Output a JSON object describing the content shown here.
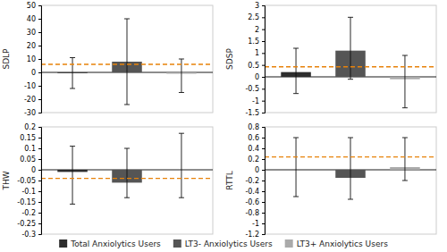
{
  "chart_data": [
    {
      "type": "bar",
      "y_label": "SDLP",
      "legend": "bottom",
      "categories": [
        null
      ],
      "ylim": [
        -30,
        50
      ],
      "yticks": [
        -30,
        -20,
        -10,
        0,
        10,
        20,
        30,
        40,
        50
      ],
      "reference_line": {
        "y": 6.0,
        "color": "#e8820a",
        "line_style": "dashed"
      },
      "series": [
        {
          "name": "Total Anxiolytics Users",
          "color": "#2d2d2d",
          "values": [
            -0.5
          ],
          "ci_low": [
            -12
          ],
          "ci_high": [
            11
          ]
        },
        {
          "name": "LT3- Anxiolytics Users",
          "color": "#555555",
          "values": [
            8.0
          ],
          "ci_low": [
            -24
          ],
          "ci_high": [
            40
          ]
        },
        {
          "name": "LT3+ Anxiolytics Users",
          "color": "#aaaaaa",
          "values": [
            -1.0
          ],
          "ci_low": [
            -15
          ],
          "ci_high": [
            10
          ]
        }
      ]
    },
    {
      "type": "bar",
      "y_label": "SDSP",
      "categories": [
        null
      ],
      "ylim": [
        -1.5,
        3.0
      ],
      "yticks": [
        -1.5,
        -1.0,
        -0.5,
        0,
        0.5,
        1.0,
        1.5,
        2.0,
        2.5,
        3.0
      ],
      "reference_line": {
        "y": 0.42,
        "color": "#e8820a",
        "line_style": "dashed"
      },
      "series": [
        {
          "name": "Total Anxiolytics Users",
          "color": "#2d2d2d",
          "values": [
            0.2
          ],
          "ci_low": [
            -0.7
          ],
          "ci_high": [
            1.2
          ]
        },
        {
          "name": "LT3- Anxiolytics Users",
          "color": "#555555",
          "values": [
            1.1
          ],
          "ci_low": [
            -0.1
          ],
          "ci_high": [
            2.5
          ]
        },
        {
          "name": "LT3+ Anxiolytics Users",
          "color": "#aaaaaa",
          "values": [
            -0.1
          ],
          "ci_low": [
            -1.3
          ],
          "ci_high": [
            0.9
          ]
        }
      ]
    },
    {
      "type": "bar",
      "y_label": "THW",
      "categories": [
        null
      ],
      "ylim": [
        -0.3,
        0.2
      ],
      "yticks": [
        -0.3,
        -0.25,
        -0.2,
        -0.15,
        -0.1,
        -0.05,
        0,
        0.05,
        0.1,
        0.15,
        0.2
      ],
      "reference_line": {
        "y": -0.04,
        "color": "#e8820a",
        "line_style": "dashed"
      },
      "series": [
        {
          "name": "Total Anxiolytics Users",
          "color": "#2d2d2d",
          "values": [
            -0.01
          ],
          "ci_low": [
            -0.16
          ],
          "ci_high": [
            0.11
          ]
        },
        {
          "name": "LT3- Anxiolytics Users",
          "color": "#555555",
          "values": [
            -0.06
          ],
          "ci_low": [
            -0.13
          ],
          "ci_high": [
            0.1
          ]
        },
        {
          "name": "LT3+ Anxiolytics Users",
          "color": "#aaaaaa",
          "values": [
            0.0
          ],
          "ci_low": [
            -0.13
          ],
          "ci_high": [
            0.17
          ]
        }
      ]
    },
    {
      "type": "bar",
      "y_label": "RTTL",
      "categories": [
        null
      ],
      "ylim": [
        -1.2,
        0.8
      ],
      "yticks": [
        -1.2,
        -1.0,
        -0.8,
        -0.6,
        -0.4,
        -0.2,
        0,
        0.2,
        0.4,
        0.6,
        0.8
      ],
      "reference_line": {
        "y": 0.24,
        "color": "#e8820a",
        "line_style": "dashed"
      },
      "series": [
        {
          "name": "Total Anxiolytics Users",
          "color": "#2d2d2d",
          "values": [
            0.0
          ],
          "ci_low": [
            -0.5
          ],
          "ci_high": [
            0.6
          ]
        },
        {
          "name": "LT3- Anxiolytics Users",
          "color": "#555555",
          "values": [
            -0.15
          ],
          "ci_low": [
            -0.55
          ],
          "ci_high": [
            0.6
          ]
        },
        {
          "name": "LT3+ Anxiolytics Users",
          "color": "#aaaaaa",
          "values": [
            0.05
          ],
          "ci_low": [
            -0.2
          ],
          "ci_high": [
            0.6
          ]
        }
      ]
    }
  ]
}
